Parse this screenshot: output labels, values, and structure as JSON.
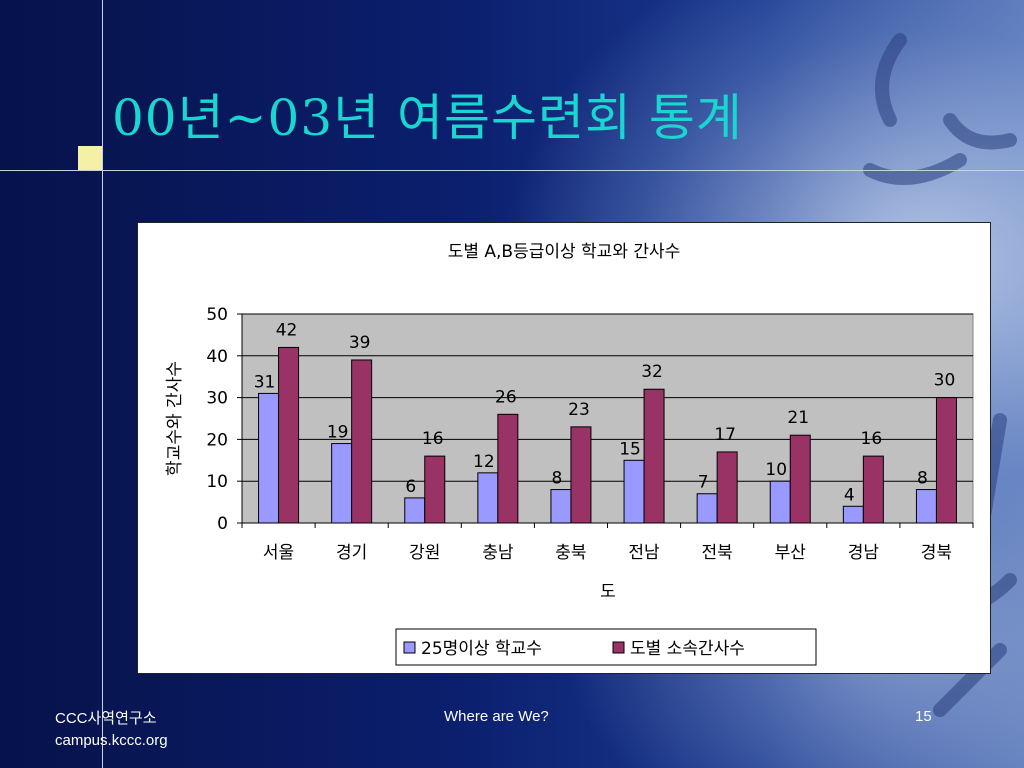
{
  "slide": {
    "title": "00년~03년 여름수련회 통계"
  },
  "footer": {
    "org_line1": "CCC사역연구소",
    "org_line2": "campus.kccc.org",
    "center": "Where are We?",
    "page_number": "15"
  },
  "colors": {
    "background": "#0a1a5c",
    "title": "#18d6d0",
    "series1": "#9999ff",
    "series2": "#993366",
    "plot_area": "#c0c0c0"
  },
  "chart_data": {
    "type": "bar",
    "title": "도별 A,B등급이상 학교와 간사수",
    "xlabel": "도",
    "ylabel": "학교수와 간사수",
    "ylim": [
      0,
      50
    ],
    "yticks": [
      0,
      10,
      20,
      30,
      40,
      50
    ],
    "grid": true,
    "legend": "bottom",
    "categories": [
      "서울",
      "경기",
      "강원",
      "충남",
      "충북",
      "전남",
      "전북",
      "부산",
      "경남",
      "경북"
    ],
    "series": [
      {
        "name": "25명이상 학교수",
        "values": [
          31,
          19,
          6,
          12,
          8,
          15,
          7,
          10,
          4,
          8
        ]
      },
      {
        "name": "도별 소속간사수",
        "values": [
          42,
          39,
          16,
          26,
          23,
          32,
          17,
          21,
          16,
          30
        ]
      }
    ]
  }
}
